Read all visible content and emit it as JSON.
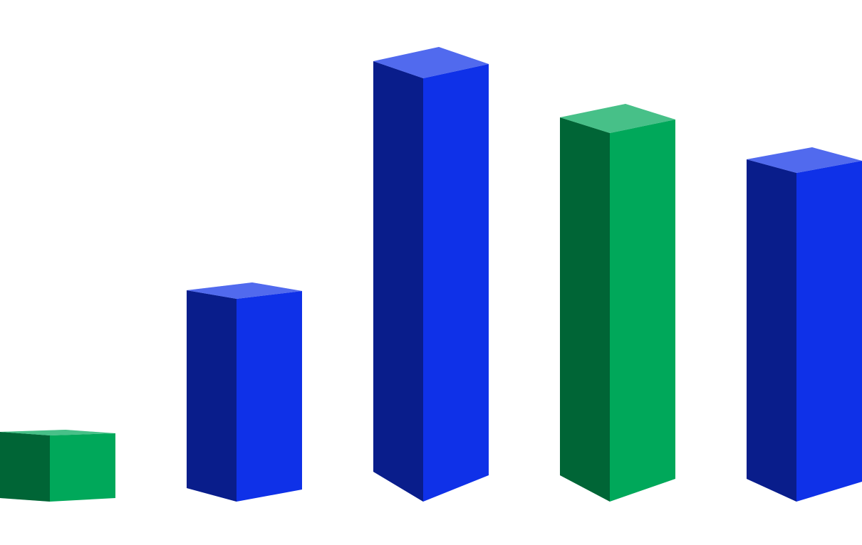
{
  "chart_data": {
    "type": "bar",
    "values": [
      93,
      285,
      595,
      518,
      462
    ],
    "colors": [
      "#00a85a",
      "#0f31e8",
      "#0f31e8",
      "#00a85a",
      "#0f31e8"
    ]
  }
}
